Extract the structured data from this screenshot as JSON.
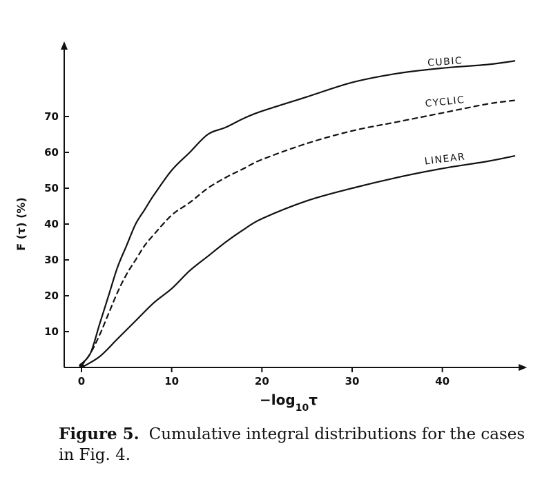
{
  "chart_data": {
    "type": "line",
    "ylabel": "F (τ) (%)",
    "xlabel": {
      "main": "−log",
      "subscript": "10",
      "symbol": "τ"
    },
    "xlim": [
      -2,
      48
    ],
    "ylim": [
      0,
      80
    ],
    "x_ticks": [
      0,
      10,
      20,
      30,
      40
    ],
    "y_ticks": [
      10,
      20,
      30,
      40,
      50,
      60,
      70
    ],
    "grid": false,
    "series": [
      {
        "name": "CUBIC",
        "style": "solid",
        "points": [
          [
            0,
            1
          ],
          [
            1,
            4
          ],
          [
            2,
            12
          ],
          [
            3,
            20
          ],
          [
            4,
            28
          ],
          [
            5,
            34
          ],
          [
            6,
            40
          ],
          [
            7,
            44
          ],
          [
            8,
            48
          ],
          [
            10,
            55
          ],
          [
            12,
            60
          ],
          [
            14,
            65
          ],
          [
            16,
            67
          ],
          [
            18,
            69.5
          ],
          [
            20,
            71.5
          ],
          [
            25,
            75.5
          ],
          [
            30,
            79.5
          ],
          [
            35,
            82
          ],
          [
            40,
            83.5
          ],
          [
            45,
            84.5
          ],
          [
            48,
            85.5
          ]
        ]
      },
      {
        "name": "CYCLIC",
        "style": "dashed",
        "points": [
          [
            0,
            0.5
          ],
          [
            1,
            4
          ],
          [
            2,
            9
          ],
          [
            3,
            15
          ],
          [
            4,
            21
          ],
          [
            5,
            26
          ],
          [
            6,
            30
          ],
          [
            7,
            34
          ],
          [
            8,
            37
          ],
          [
            10,
            42.5
          ],
          [
            12,
            46
          ],
          [
            14,
            50
          ],
          [
            16,
            53
          ],
          [
            18,
            55.5
          ],
          [
            20,
            58
          ],
          [
            25,
            62.5
          ],
          [
            30,
            66
          ],
          [
            35,
            68.5
          ],
          [
            40,
            71
          ],
          [
            45,
            73.5
          ],
          [
            48,
            74.5
          ]
        ]
      },
      {
        "name": "LINEAR",
        "style": "solid",
        "points": [
          [
            0,
            0
          ],
          [
            2,
            3
          ],
          [
            4,
            8
          ],
          [
            6,
            13
          ],
          [
            8,
            18
          ],
          [
            10,
            22
          ],
          [
            12,
            27
          ],
          [
            14,
            31
          ],
          [
            16,
            35
          ],
          [
            18,
            38.5
          ],
          [
            20,
            41.5
          ],
          [
            25,
            46.5
          ],
          [
            30,
            50
          ],
          [
            35,
            53
          ],
          [
            40,
            55.5
          ],
          [
            45,
            57.5
          ],
          [
            48,
            59
          ]
        ]
      }
    ]
  },
  "caption": {
    "label": "Figure 5.",
    "text": "Cumulative integral distributions for the cases in Fig. 4."
  }
}
